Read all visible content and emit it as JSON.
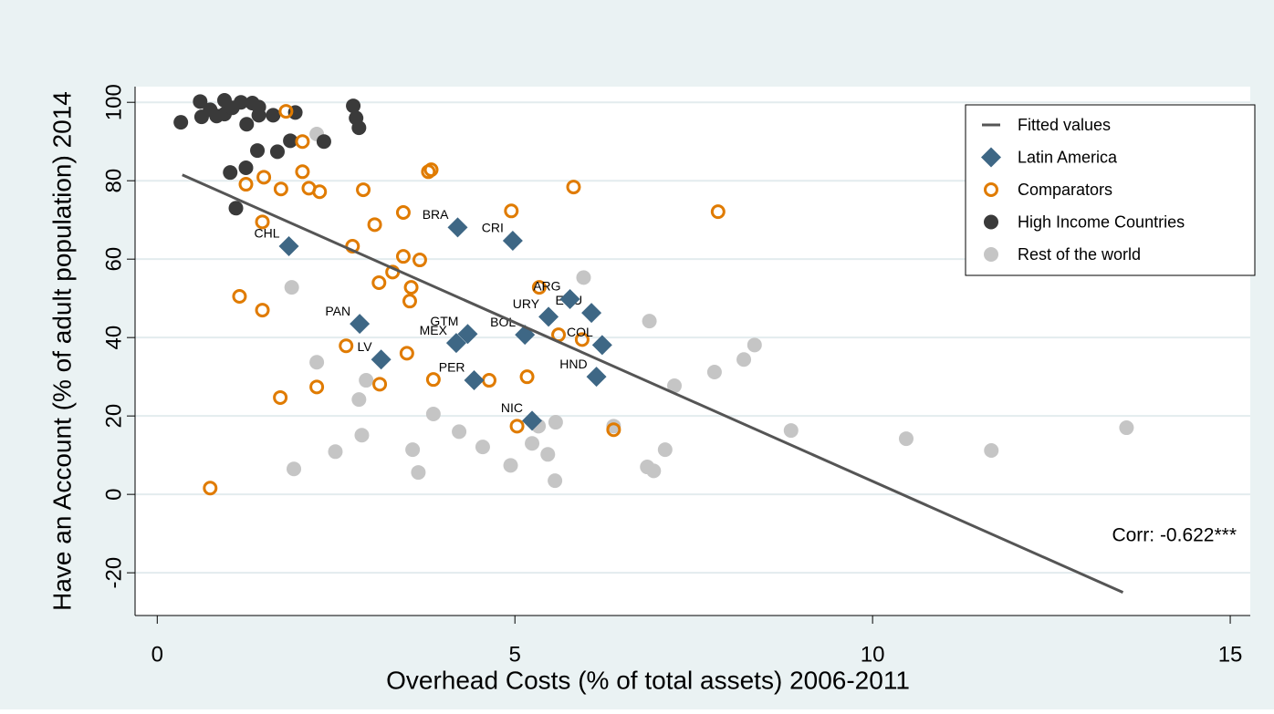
{
  "chart_data": {
    "type": "scatter",
    "xlabel": "Overhead Costs (% of total assets) 2006-2011",
    "ylabel": "Have an Account (% of adult population) 2014",
    "xlim": [
      -0.31,
      15.28
    ],
    "ylim": [
      -30.9,
      104
    ],
    "xticks": [
      0,
      5,
      10,
      15
    ],
    "yticks": [
      -20,
      0,
      20,
      40,
      60,
      80,
      100
    ],
    "grid": true,
    "legend": "upper right",
    "annotation": "Corr: -0.622***",
    "series": [
      {
        "name": "Fitted values",
        "type": "line",
        "color": "#555555",
        "x": [
          0.35,
          13.5
        ],
        "values": [
          81.5,
          -25
        ]
      },
      {
        "name": "Latin America",
        "marker": "diamond",
        "color": "#3e6785",
        "x": [
          1.84,
          4.2,
          4.97,
          2.83,
          3.13,
          4.34,
          4.18,
          4.43,
          5.14,
          5.47,
          6.07,
          5.77,
          6.22,
          6.14,
          5.24
        ],
        "values": [
          63.3,
          68.1,
          64.7,
          43.5,
          34.4,
          40.9,
          38.6,
          29.1,
          40.7,
          45.3,
          46.3,
          49.8,
          38.1,
          30.0,
          18.8
        ],
        "labels": [
          "CHL",
          "BRA",
          "CRI",
          "PAN",
          "LV",
          "GTM",
          "MEX",
          "PER",
          "BOL",
          "URY",
          "ECU",
          "ARG",
          "COL",
          "HND",
          "NIC"
        ]
      },
      {
        "name": "Comparators",
        "marker": "ring",
        "color": "#e07b00",
        "x": [
          0.74,
          1.8,
          2.03,
          1.24,
          1.49,
          1.73,
          2.03,
          2.12,
          2.27,
          2.88,
          1.47,
          3.04,
          3.79,
          3.83,
          3.44,
          2.73,
          3.1,
          3.29,
          3.44,
          3.67,
          3.55,
          3.53,
          1.15,
          1.47,
          2.64,
          3.49,
          3.11,
          2.23,
          1.72,
          3.86,
          4.64,
          5.17,
          4.95,
          5.82,
          7.84,
          5.34,
          5.61,
          5.94,
          5.03,
          6.38
        ],
        "values": [
          1.6,
          97.7,
          90.0,
          79.1,
          80.9,
          77.9,
          82.3,
          78.1,
          77.2,
          77.7,
          69.5,
          68.8,
          82.3,
          82.8,
          71.9,
          63.3,
          54.0,
          56.7,
          60.7,
          59.8,
          52.8,
          49.3,
          50.5,
          47.0,
          37.9,
          36.0,
          28.1,
          27.4,
          24.7,
          29.3,
          29.1,
          30.0,
          72.3,
          78.4,
          72.1,
          52.8,
          40.7,
          39.5,
          17.4,
          16.5
        ]
      },
      {
        "name": "High Income Countries",
        "marker": "circle",
        "color": "#3a3a3a",
        "x": [
          0.33,
          0.6,
          0.62,
          0.74,
          0.83,
          0.94,
          0.94,
          1.05,
          1.17,
          1.33,
          1.42,
          1.42,
          1.25,
          1.62,
          1.93,
          2.74,
          2.78,
          2.82,
          1.4,
          1.68,
          1.86,
          2.33,
          1.02,
          1.24,
          1.1
        ],
        "values": [
          94.9,
          100.2,
          96.3,
          98.1,
          96.5,
          100.5,
          97.0,
          98.6,
          100.0,
          99.8,
          98.8,
          96.7,
          94.4,
          96.7,
          97.4,
          99.1,
          96.0,
          93.5,
          87.7,
          87.4,
          90.2,
          90.0,
          82.1,
          83.3,
          73.0
        ]
      },
      {
        "name": "Rest of the world",
        "marker": "circle",
        "color": "#c5c5c5",
        "x": [
          2.23,
          1.88,
          5.96,
          2.23,
          2.92,
          2.82,
          2.86,
          2.49,
          1.91,
          3.57,
          3.86,
          4.22,
          3.65,
          4.55,
          4.94,
          5.24,
          5.33,
          5.46,
          5.57,
          5.56,
          6.38,
          6.88,
          6.85,
          6.94,
          7.1,
          7.23,
          7.79,
          8.2,
          8.35,
          8.86,
          10.47,
          11.66,
          13.55
        ],
        "values": [
          91.9,
          52.8,
          55.3,
          33.7,
          29.1,
          24.2,
          15.1,
          10.9,
          6.5,
          11.4,
          20.5,
          16.0,
          5.6,
          12.1,
          7.4,
          13.0,
          17.4,
          10.2,
          18.4,
          3.5,
          17.4,
          44.2,
          7.0,
          6.0,
          11.4,
          27.7,
          31.2,
          34.4,
          38.1,
          16.3,
          14.2,
          11.2,
          17.0
        ]
      }
    ]
  }
}
